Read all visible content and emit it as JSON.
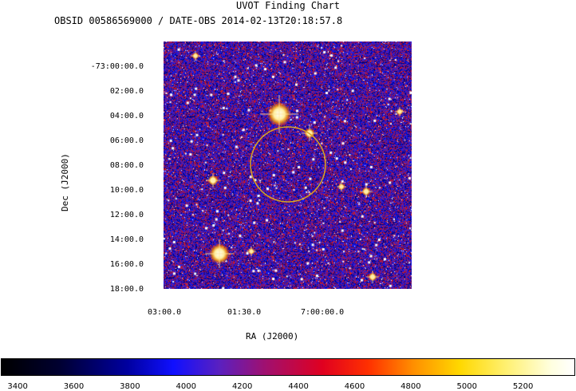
{
  "title": "UVOT Finding Chart",
  "subtitle": "OBSID 00586569000 / DATE-OBS 2014-02-13T20:18:57.8",
  "dec_axis": {
    "label": "Dec (J2000)",
    "ticks": [
      "-73:00:00.0",
      "02:00.0",
      "04:00.0",
      "06:00.0",
      "08:00.0",
      "10:00.0",
      "12:00.0",
      "14:00.0",
      "16:00.0",
      "18:00.0"
    ]
  },
  "ra_axis": {
    "label": "RA (J2000)",
    "ticks": [
      "03:00.0",
      "01:30.0",
      "7:00:00.0"
    ]
  },
  "colorbar": {
    "ticks": [
      "3400",
      "3600",
      "3800",
      "4000",
      "4200",
      "4400",
      "4600",
      "4800",
      "5000",
      "5200"
    ],
    "range": [
      3340,
      5380
    ]
  },
  "marker": {
    "shape": "circle",
    "color": "#d9a520"
  }
}
